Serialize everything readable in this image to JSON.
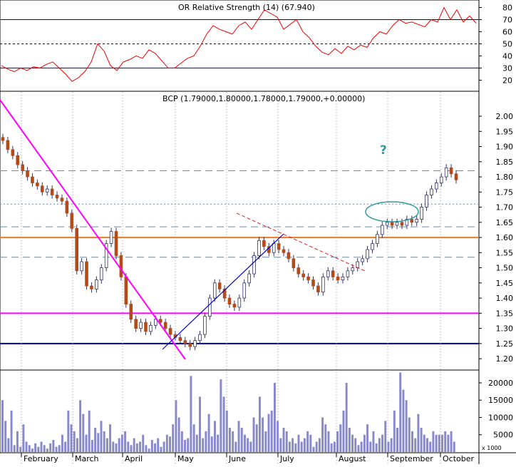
{
  "chart_data": [
    {
      "panel": "rsi",
      "type": "line",
      "title": "OR Relative Strength (14) (67.940)",
      "ylim": [
        12,
        85
      ],
      "y_ticks": [
        20,
        30,
        40,
        50,
        60,
        70,
        80
      ],
      "reference_lines": [
        {
          "value": 70,
          "style": "solid",
          "color": "#0000aa"
        },
        {
          "value": 50,
          "style": "dashed",
          "color": "#0000aa"
        },
        {
          "value": 30,
          "style": "solid",
          "color": "#0000aa"
        }
      ],
      "series": [
        {
          "color": "#ee0000",
          "values": [
            32,
            29,
            27,
            30,
            28,
            31,
            30,
            33,
            35,
            30,
            25,
            19,
            22,
            27,
            35,
            50,
            44,
            32,
            28,
            35,
            37,
            40,
            38,
            45,
            42,
            36,
            30,
            30,
            34,
            38,
            40,
            48,
            58,
            65,
            62,
            60,
            58,
            65,
            68,
            62,
            70,
            78,
            75,
            72,
            62,
            66,
            70,
            60,
            55,
            48,
            43,
            41,
            46,
            42,
            48,
            45,
            49,
            47,
            55,
            60,
            58,
            65,
            70,
            67,
            68,
            66,
            64,
            70,
            68,
            80,
            70,
            78,
            68,
            73,
            67
          ]
        }
      ]
    },
    {
      "panel": "price",
      "type": "candlestick",
      "title": "BCP (1.79000,1.80000,1.78000,1.79000,+0.00000)",
      "ylim": [
        1.165,
        2.08
      ],
      "y_ticks": [
        "1.20",
        "1.25",
        "1.30",
        "1.35",
        "1.40",
        "1.45",
        "1.50",
        "1.55",
        "1.60",
        "1.65",
        "1.70",
        "1.75",
        "1.80",
        "1.85",
        "1.90",
        "1.95",
        "2.00"
      ],
      "x_categories": [
        "February",
        "March",
        "April",
        "May",
        "June",
        "July",
        "August",
        "September",
        "October"
      ],
      "candles_close": [
        1.92,
        1.89,
        1.87,
        1.84,
        1.82,
        1.8,
        1.78,
        1.77,
        1.75,
        1.76,
        1.74,
        1.73,
        1.72,
        1.68,
        1.63,
        1.49,
        1.52,
        1.44,
        1.43,
        1.46,
        1.5,
        1.58,
        1.62,
        1.54,
        1.47,
        1.38,
        1.33,
        1.3,
        1.32,
        1.29,
        1.31,
        1.33,
        1.32,
        1.3,
        1.28,
        1.27,
        1.26,
        1.25,
        1.24,
        1.26,
        1.28,
        1.34,
        1.4,
        1.45,
        1.43,
        1.4,
        1.38,
        1.37,
        1.4,
        1.45,
        1.48,
        1.54,
        1.59,
        1.57,
        1.55,
        1.58,
        1.56,
        1.55,
        1.53,
        1.5,
        1.48,
        1.47,
        1.46,
        1.44,
        1.42,
        1.47,
        1.49,
        1.47,
        1.46,
        1.47,
        1.49,
        1.5,
        1.52,
        1.53,
        1.56,
        1.58,
        1.61,
        1.64,
        1.65,
        1.64,
        1.65,
        1.64,
        1.66,
        1.65,
        1.66,
        1.7,
        1.74,
        1.76,
        1.78,
        1.8,
        1.83,
        1.81,
        1.79
      ],
      "horizontal_lines": [
        {
          "value": 1.82,
          "style": "dashed",
          "color": "#6a8ea8"
        },
        {
          "value": 1.71,
          "style": "dotted",
          "color": "#6a8ea8"
        },
        {
          "value": 1.635,
          "style": "dashed",
          "color": "#6a8ea8"
        },
        {
          "value": 1.6,
          "style": "solid",
          "color": "#ee7722"
        },
        {
          "value": 1.535,
          "style": "dashed",
          "color": "#6a8ea8"
        },
        {
          "value": 1.35,
          "style": "solid",
          "color": "#ff00ff"
        },
        {
          "value": 1.25,
          "style": "solid",
          "color": "#000099"
        }
      ],
      "annotations": [
        {
          "text": "?",
          "color": "#339999"
        }
      ],
      "colors": {
        "up": "#ffffff",
        "down": "#b34a1a",
        "wick": "#333366"
      }
    },
    {
      "panel": "volume",
      "type": "bar",
      "ylim": [
        0,
        23500
      ],
      "y_ticks": [
        "5000",
        "10000",
        "15000",
        "20000"
      ],
      "unit_label": "x 1000",
      "color": "#8888cc",
      "values": [
        15000,
        9000,
        4000,
        12000,
        2000,
        6000,
        1500,
        8000,
        3000,
        2000,
        1000,
        2500,
        1500,
        3000,
        2000,
        1000,
        2500,
        3500,
        1500,
        2000,
        5000,
        3000,
        12000,
        8000,
        6000,
        4000,
        15000,
        11000,
        5000,
        12000,
        3500,
        7000,
        5500,
        9000,
        6000,
        4000,
        8000,
        3000,
        2500,
        4000,
        5000,
        6000,
        3000,
        2000,
        4000,
        2500,
        3000,
        5000,
        2000,
        1000,
        3500,
        2500,
        4000,
        1500,
        3000,
        5000,
        4500,
        8000,
        15000,
        10000,
        6000,
        3500,
        4000,
        22000,
        8000,
        5000,
        16000,
        4000,
        6000,
        11000,
        4500,
        9000,
        5000,
        21000,
        16000,
        12000,
        7000,
        6000,
        3000,
        9000,
        7000,
        5000,
        4000,
        3000,
        10000,
        8000,
        16000,
        10000,
        6000,
        11000,
        12000,
        20000,
        9000,
        4000,
        7000,
        6000,
        3000,
        4000,
        2500,
        5000,
        3000,
        4000,
        6000,
        5000,
        1500,
        3000,
        4000,
        10000,
        8000,
        6000,
        2500,
        3000,
        6000,
        8000,
        12000,
        20000,
        7000,
        5000,
        4000,
        2000,
        3000,
        5000,
        8000,
        3000,
        6000,
        2500,
        4000,
        5000,
        9000,
        3000,
        4000,
        12000,
        7000,
        23000,
        18000,
        15000,
        10000,
        6000,
        4000,
        11000,
        7000,
        5000,
        4000,
        3000,
        6000,
        5000,
        5000,
        5000,
        6000,
        5000,
        6000,
        3000
      ]
    }
  ]
}
